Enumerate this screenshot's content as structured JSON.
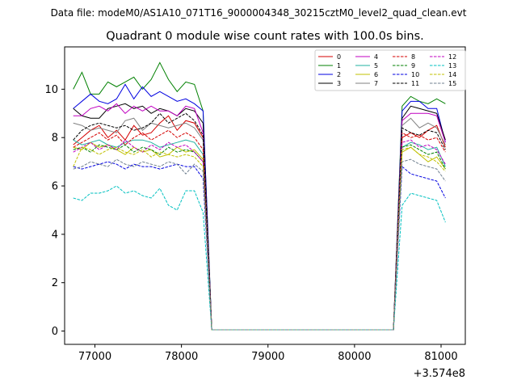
{
  "chart_data": {
    "type": "line",
    "suptitle": "Data file: modeM0/AS1A10_071T16_9000004348_30215cztM0_level2_quad_clean.evt",
    "title": "Quadrant 0 module wise count rates with 100.0s bins.",
    "xlabel": "",
    "ylabel": "",
    "x_offset_label": "+3.574e8",
    "xlim": [
      76650,
      81280
    ],
    "ylim": [
      -0.55,
      11.75
    ],
    "x_ticks": [
      77000,
      78000,
      79000,
      80000,
      81000
    ],
    "x_tick_labels": [
      "77000",
      "78000",
      "79000",
      "80000",
      "81000"
    ],
    "y_ticks": [
      0,
      2,
      4,
      6,
      8,
      10
    ],
    "y_tick_labels": [
      "0",
      "2",
      "4",
      "6",
      "8",
      "10"
    ],
    "grid": false,
    "legend": {
      "placement": "top-right",
      "columns": 4
    },
    "x": [
      76750,
      76850,
      76950,
      77050,
      77150,
      77250,
      77350,
      77450,
      77550,
      77650,
      77750,
      77850,
      77950,
      78050,
      78150,
      78250,
      78350,
      78450,
      78550,
      78650,
      78750,
      78850,
      78950,
      79050,
      79150,
      79250,
      79350,
      79450,
      79550,
      79650,
      79750,
      79850,
      79950,
      80050,
      80150,
      80250,
      80350,
      80450,
      80550,
      80650,
      80750,
      80850,
      80950,
      81050
    ],
    "series": [
      {
        "name": "0",
        "color": "#d40000",
        "dash": false,
        "values": [
          7.7,
          8.0,
          8.3,
          8.5,
          8.0,
          8.3,
          7.9,
          8.5,
          8.1,
          8.2,
          8.6,
          8.9,
          8.3,
          8.7,
          8.6,
          8.0,
          0.05,
          0.05,
          0.05,
          0.05,
          0.05,
          0.05,
          0.05,
          0.05,
          0.05,
          0.05,
          0.05,
          0.05,
          0.05,
          0.05,
          0.05,
          0.05,
          0.05,
          0.05,
          0.05,
          0.05,
          0.05,
          0.05,
          8.0,
          8.2,
          8.0,
          8.3,
          8.5,
          7.6
        ]
      },
      {
        "name": "1",
        "color": "#008000",
        "dash": false,
        "values": [
          10.0,
          10.7,
          9.8,
          9.8,
          10.3,
          10.1,
          10.3,
          10.5,
          10.0,
          10.4,
          11.1,
          10.4,
          9.9,
          10.3,
          10.2,
          9.1,
          0.05,
          0.05,
          0.05,
          0.05,
          0.05,
          0.05,
          0.05,
          0.05,
          0.05,
          0.05,
          0.05,
          0.05,
          0.05,
          0.05,
          0.05,
          0.05,
          0.05,
          0.05,
          0.05,
          0.05,
          0.05,
          0.05,
          9.3,
          9.7,
          9.5,
          9.4,
          9.6,
          9.4
        ]
      },
      {
        "name": "2",
        "color": "#0000e0",
        "dash": false,
        "values": [
          9.2,
          9.5,
          9.8,
          9.5,
          9.4,
          9.6,
          10.2,
          9.6,
          10.1,
          9.7,
          9.9,
          9.7,
          9.5,
          9.6,
          9.4,
          9.1,
          0.05,
          0.05,
          0.05,
          0.05,
          0.05,
          0.05,
          0.05,
          0.05,
          0.05,
          0.05,
          0.05,
          0.05,
          0.05,
          0.05,
          0.05,
          0.05,
          0.05,
          0.05,
          0.05,
          0.05,
          0.05,
          0.05,
          9.1,
          9.5,
          9.5,
          9.2,
          9.2,
          7.8
        ]
      },
      {
        "name": "3",
        "color": "#000000",
        "dash": false,
        "values": [
          9.2,
          8.9,
          8.8,
          8.8,
          9.2,
          9.3,
          9.4,
          9.2,
          9.3,
          9.0,
          9.2,
          9.1,
          8.9,
          9.2,
          9.1,
          8.6,
          0.05,
          0.05,
          0.05,
          0.05,
          0.05,
          0.05,
          0.05,
          0.05,
          0.05,
          0.05,
          0.05,
          0.05,
          0.05,
          0.05,
          0.05,
          0.05,
          0.05,
          0.05,
          0.05,
          0.05,
          0.05,
          0.05,
          8.8,
          9.3,
          9.2,
          9.1,
          9.0,
          7.9
        ]
      },
      {
        "name": "4",
        "color": "#c000c0",
        "dash": false,
        "values": [
          8.9,
          8.9,
          9.2,
          9.3,
          9.1,
          9.4,
          9.0,
          9.3,
          9.1,
          9.3,
          9.1,
          9.1,
          8.9,
          9.3,
          9.2,
          8.2,
          0.05,
          0.05,
          0.05,
          0.05,
          0.05,
          0.05,
          0.05,
          0.05,
          0.05,
          0.05,
          0.05,
          0.05,
          0.05,
          0.05,
          0.05,
          0.05,
          0.05,
          0.05,
          0.05,
          0.05,
          0.05,
          0.05,
          8.7,
          9.0,
          9.0,
          9.0,
          8.9,
          7.8
        ]
      },
      {
        "name": "5",
        "color": "#20b0a0",
        "dash": false,
        "values": [
          7.9,
          7.7,
          7.8,
          7.9,
          7.7,
          7.6,
          7.8,
          7.9,
          7.9,
          7.8,
          7.6,
          7.7,
          7.8,
          7.9,
          7.8,
          7.3,
          0.05,
          0.05,
          0.05,
          0.05,
          0.05,
          0.05,
          0.05,
          0.05,
          0.05,
          0.05,
          0.05,
          0.05,
          0.05,
          0.05,
          0.05,
          0.05,
          0.05,
          0.05,
          0.05,
          0.05,
          0.05,
          0.05,
          7.6,
          7.8,
          7.7,
          7.5,
          7.6,
          6.8
        ]
      },
      {
        "name": "6",
        "color": "#c0c000",
        "dash": false,
        "values": [
          7.6,
          7.5,
          7.8,
          7.6,
          7.7,
          7.5,
          7.3,
          7.6,
          7.4,
          7.5,
          7.2,
          7.3,
          7.6,
          7.4,
          7.5,
          7.1,
          0.05,
          0.05,
          0.05,
          0.05,
          0.05,
          0.05,
          0.05,
          0.05,
          0.05,
          0.05,
          0.05,
          0.05,
          0.05,
          0.05,
          0.05,
          0.05,
          0.05,
          0.05,
          0.05,
          0.05,
          0.05,
          0.05,
          7.4,
          7.6,
          7.3,
          7.0,
          7.2,
          6.7
        ]
      },
      {
        "name": "7",
        "color": "#808080",
        "dash": false,
        "values": [
          8.6,
          8.5,
          8.3,
          8.4,
          8.3,
          8.2,
          8.7,
          8.8,
          8.3,
          8.6,
          8.5,
          8.4,
          8.5,
          8.6,
          8.4,
          7.9,
          0.05,
          0.05,
          0.05,
          0.05,
          0.05,
          0.05,
          0.05,
          0.05,
          0.05,
          0.05,
          0.05,
          0.05,
          0.05,
          0.05,
          0.05,
          0.05,
          0.05,
          0.05,
          0.05,
          0.05,
          0.05,
          0.05,
          8.5,
          8.8,
          8.4,
          8.6,
          8.4,
          7.7
        ]
      },
      {
        "name": "8",
        "color": "#d40000",
        "dash": true,
        "values": [
          7.6,
          7.8,
          8.0,
          8.2,
          7.9,
          8.1,
          7.7,
          8.0,
          8.2,
          7.9,
          8.1,
          8.3,
          8.0,
          8.2,
          8.0,
          7.5,
          0.05,
          0.05,
          0.05,
          0.05,
          0.05,
          0.05,
          0.05,
          0.05,
          0.05,
          0.05,
          0.05,
          0.05,
          0.05,
          0.05,
          0.05,
          0.05,
          0.05,
          0.05,
          0.05,
          0.05,
          0.05,
          0.05,
          8.2,
          8.0,
          8.1,
          7.9,
          8.0,
          7.4
        ]
      },
      {
        "name": "9",
        "color": "#008000",
        "dash": true,
        "values": [
          7.5,
          7.6,
          7.4,
          7.7,
          7.6,
          7.5,
          7.7,
          7.4,
          7.6,
          7.5,
          7.3,
          7.6,
          7.4,
          7.5,
          7.4,
          7.0,
          0.05,
          0.05,
          0.05,
          0.05,
          0.05,
          0.05,
          0.05,
          0.05,
          0.05,
          0.05,
          0.05,
          0.05,
          0.05,
          0.05,
          0.05,
          0.05,
          0.05,
          0.05,
          0.05,
          0.05,
          0.05,
          0.05,
          7.6,
          7.7,
          7.5,
          7.3,
          7.4,
          6.7
        ]
      },
      {
        "name": "10",
        "color": "#0000e0",
        "dash": true,
        "values": [
          6.8,
          6.7,
          6.8,
          6.9,
          7.0,
          6.9,
          6.7,
          6.9,
          6.8,
          6.8,
          6.7,
          6.8,
          6.9,
          6.8,
          6.8,
          6.3,
          0.05,
          0.05,
          0.05,
          0.05,
          0.05,
          0.05,
          0.05,
          0.05,
          0.05,
          0.05,
          0.05,
          0.05,
          0.05,
          0.05,
          0.05,
          0.05,
          0.05,
          0.05,
          0.05,
          0.05,
          0.05,
          0.05,
          6.8,
          6.5,
          6.4,
          6.3,
          6.2,
          5.5
        ]
      },
      {
        "name": "11",
        "color": "#000000",
        "dash": true,
        "values": [
          7.9,
          8.3,
          8.5,
          8.6,
          8.5,
          8.4,
          8.5,
          8.3,
          8.4,
          8.6,
          9.0,
          8.6,
          8.8,
          9.0,
          8.7,
          8.1,
          0.05,
          0.05,
          0.05,
          0.05,
          0.05,
          0.05,
          0.05,
          0.05,
          0.05,
          0.05,
          0.05,
          0.05,
          0.05,
          0.05,
          0.05,
          0.05,
          0.05,
          0.05,
          0.05,
          0.05,
          0.05,
          0.05,
          8.4,
          8.2,
          8.1,
          8.3,
          8.2,
          7.5
        ]
      },
      {
        "name": "12",
        "color": "#c000c0",
        "dash": true,
        "values": [
          7.4,
          7.6,
          7.8,
          7.5,
          7.7,
          7.5,
          7.9,
          7.6,
          7.4,
          7.7,
          7.5,
          7.8,
          7.6,
          7.7,
          7.4,
          7.0,
          0.05,
          0.05,
          0.05,
          0.05,
          0.05,
          0.05,
          0.05,
          0.05,
          0.05,
          0.05,
          0.05,
          0.05,
          0.05,
          0.05,
          0.05,
          0.05,
          0.05,
          0.05,
          0.05,
          0.05,
          0.05,
          0.05,
          7.8,
          7.9,
          7.6,
          7.7,
          7.5,
          6.9
        ]
      },
      {
        "name": "13",
        "color": "#00c0c0",
        "dash": true,
        "values": [
          5.5,
          5.4,
          5.7,
          5.7,
          5.8,
          6.0,
          5.7,
          5.8,
          5.6,
          5.5,
          5.9,
          5.2,
          5.0,
          5.8,
          5.8,
          4.9,
          0.05,
          0.05,
          0.05,
          0.05,
          0.05,
          0.05,
          0.05,
          0.05,
          0.05,
          0.05,
          0.05,
          0.05,
          0.05,
          0.05,
          0.05,
          0.05,
          0.05,
          0.05,
          0.05,
          0.05,
          0.05,
          0.05,
          5.2,
          5.7,
          5.6,
          5.5,
          5.4,
          4.5
        ]
      },
      {
        "name": "14",
        "color": "#c0c000",
        "dash": true,
        "values": [
          6.8,
          7.6,
          7.5,
          7.3,
          7.5,
          7.6,
          7.4,
          7.3,
          7.5,
          7.2,
          7.4,
          7.3,
          7.2,
          7.3,
          7.2,
          6.8,
          0.05,
          0.05,
          0.05,
          0.05,
          0.05,
          0.05,
          0.05,
          0.05,
          0.05,
          0.05,
          0.05,
          0.05,
          0.05,
          0.05,
          0.05,
          0.05,
          0.05,
          0.05,
          0.05,
          0.05,
          0.05,
          0.05,
          7.5,
          7.6,
          7.3,
          7.2,
          7.0,
          6.6
        ]
      },
      {
        "name": "15",
        "color": "#708090",
        "dash": true,
        "values": [
          6.7,
          6.8,
          7.0,
          6.9,
          6.8,
          7.1,
          6.9,
          6.8,
          7.0,
          6.9,
          6.8,
          7.0,
          6.9,
          6.5,
          6.9,
          6.6,
          0.05,
          0.05,
          0.05,
          0.05,
          0.05,
          0.05,
          0.05,
          0.05,
          0.05,
          0.05,
          0.05,
          0.05,
          0.05,
          0.05,
          0.05,
          0.05,
          0.05,
          0.05,
          0.05,
          0.05,
          0.05,
          0.05,
          7.0,
          7.1,
          6.9,
          6.8,
          6.7,
          6.2
        ]
      }
    ]
  }
}
